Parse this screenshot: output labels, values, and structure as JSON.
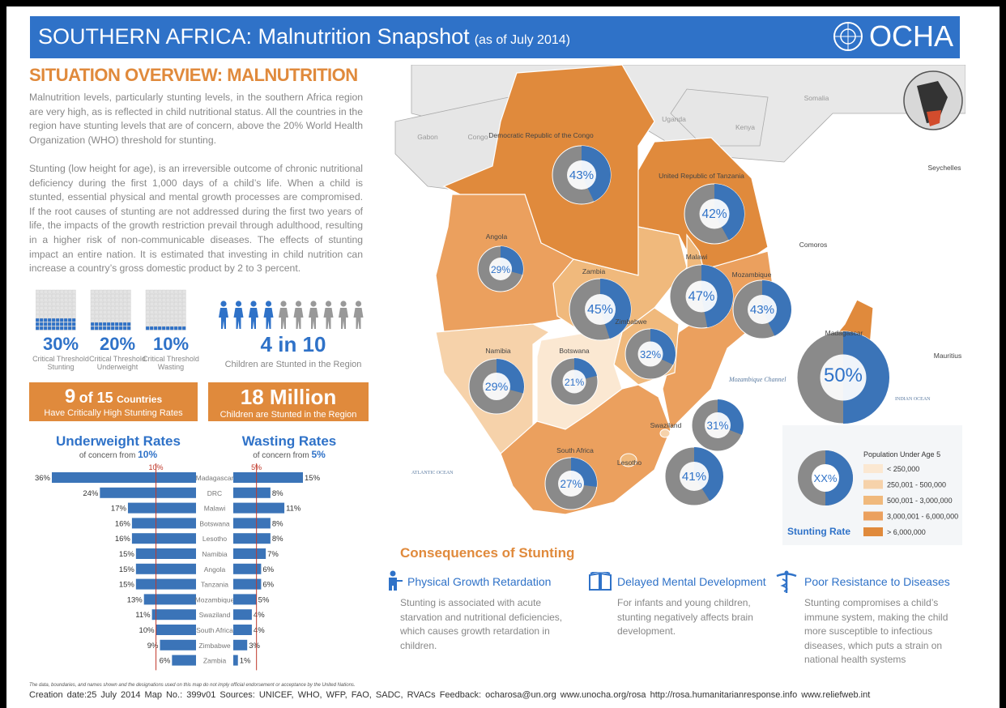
{
  "header": {
    "title": "SOUTHERN AFRICA:  Malnutrition Snapshot",
    "subtitle": "(as of July 2014)",
    "logo": "OCHA"
  },
  "overview": {
    "title": "SITUATION OVERVIEW: MALNUTRITION",
    "para1": "Malnutrition levels, particularly stunting levels, in the southern Africa region are very high, as is reflected in child nutritional status. All the countries in the region have stunting levels that are of concern, above the 20% World Health Organization (WHO) threshold for stunting.",
    "para2": "Stunting (low height for age), is an irreversible outcome of chronic nutritional deficiency during the first 1,000 days of a child’s life. When a child is stunted, essential physical and mental growth processes are compromised. If the root causes of stunting are not addressed during the first two years of life, the impacts of the growth restriction prevail through adulthood, resulting in a higher risk of non-communicable diseases. The effects of stunting impact an entire nation. It is estimated that investing in child nutrition can increase a country’s gross domestic product by 2 to 3 percent."
  },
  "thresholds": [
    {
      "value": "30%",
      "label": "Critical Threshold Stunting",
      "fraction": 0.3
    },
    {
      "value": "20%",
      "label": "Critical Threshold Underweight",
      "fraction": 0.2
    },
    {
      "value": "10%",
      "label": "Critical Threshold Wasting",
      "fraction": 0.1
    }
  ],
  "children_stat": {
    "value": "4 in 10",
    "label": "Children are Stunted in the Region"
  },
  "box1": {
    "big": "9",
    "mid": "of 15",
    "small": "Countries",
    "sub": "Have Critically High Stunting Rates"
  },
  "box2": {
    "big": "18 Million",
    "sub": "Children  are Stunted in the Region"
  },
  "underweight": {
    "title": "Underweight Rates",
    "sub_prefix": "of concern from",
    "sub_value": "10%",
    "threshold_label": "10%"
  },
  "wasting": {
    "title": "Wasting Rates",
    "sub_prefix": "of concern from",
    "sub_value": "5%",
    "threshold_label": "5%"
  },
  "chart_data": [
    {
      "type": "bar",
      "title": "Underweight Rates",
      "categories": [
        "Madagascar",
        "DRC",
        "Malawi",
        "Botswana",
        "Lesotho",
        "Namibia",
        "Angola",
        "Tanzania",
        "Mozambique",
        "Swaziland",
        "South Africa",
        "Zimbabwe",
        "Zambia"
      ],
      "values": [
        36,
        24,
        17,
        16,
        16,
        15,
        15,
        15,
        13,
        11,
        10,
        9,
        6
      ],
      "threshold": 10
    },
    {
      "type": "bar",
      "title": "Wasting Rates",
      "categories": [
        "Madagascar",
        "DRC",
        "Malawi",
        "Botswana",
        "Lesotho",
        "Namibia",
        "Angola",
        "Tanzania",
        "Mozambique",
        "Swaziland",
        "South Africa",
        "Zimbabwe",
        "Zambia"
      ],
      "values": [
        15,
        8,
        11,
        8,
        8,
        7,
        6,
        6,
        5,
        4,
        4,
        3,
        1
      ],
      "threshold": 5
    },
    {
      "type": "pie",
      "title": "Stunting Rate",
      "countries": [
        {
          "name": "Democratic Republic of the Congo",
          "value": 43
        },
        {
          "name": "United Republic of Tanzania",
          "value": 42
        },
        {
          "name": "Angola",
          "value": 29
        },
        {
          "name": "Zambia",
          "value": 45
        },
        {
          "name": "Malawi",
          "value": 47
        },
        {
          "name": "Mozambique",
          "value": 43
        },
        {
          "name": "Zimbabwe",
          "value": 32
        },
        {
          "name": "Namibia",
          "value": 29
        },
        {
          "name": "Botswana",
          "value": 21
        },
        {
          "name": "Madagascar",
          "value": 50
        },
        {
          "name": "Swaziland",
          "value": 31
        },
        {
          "name": "Lesotho",
          "value": 41
        },
        {
          "name": "South Africa",
          "value": 27
        }
      ]
    }
  ],
  "map_labels": {
    "others": [
      "Gabon",
      "Congo",
      "Uganda",
      "Kenya",
      "Somalia",
      "Seychelles",
      "Comoros",
      "Mauritius"
    ],
    "ocean_atlantic": "ATLANTIC OCEAN",
    "ocean_indian": "INDIAN OCEAN",
    "channel": "Mozambique Channel"
  },
  "legend": {
    "title": "Population",
    "title2": "Under Age 5",
    "pie_label": "XX%",
    "rate_label": "Stunting Rate",
    "items": [
      {
        "label": "< 250,000",
        "color": "#fbe8d2"
      },
      {
        "label": "250,001 - 500,000",
        "color": "#f6d2aa"
      },
      {
        "label": "500,001 - 3,000,000",
        "color": "#f0b97c"
      },
      {
        "label": "3,000,001 - 6,000,000",
        "color": "#eba05e"
      },
      {
        "label": "> 6,000,000",
        "color": "#e08a3c"
      }
    ]
  },
  "consequences": {
    "title": "Consequences of Stunting",
    "items": [
      {
        "heading": "Physical Growth Retardation",
        "text": "Stunting is associated with acute starvation and nutritional deficiencies, which causes growth retardation in children."
      },
      {
        "heading": "Delayed Mental Development",
        "text": "For infants and young children, stunting negatively affects brain development."
      },
      {
        "heading": "Poor Resistance to Diseases",
        "text": "Stunting compromises a child’s immune system, making the child more susceptible to infectious diseases, which puts a strain on national health systems"
      }
    ]
  },
  "footer": {
    "disclaimer": "The data, boundaries, and names shown and the designations used on this map do not imply official endorsement or acceptance by the United Nations.",
    "line": "Creation date:25 July 2014 Map No.: 399v01  Sources:  UNICEF,  WHO,  WFP,  FAO, SADC,  RVACs  Feedback:  ocharosa@un.org        www.unocha.org/rosa        http://rosa.humanitarianresponse.info   www.reliefweb.int"
  }
}
